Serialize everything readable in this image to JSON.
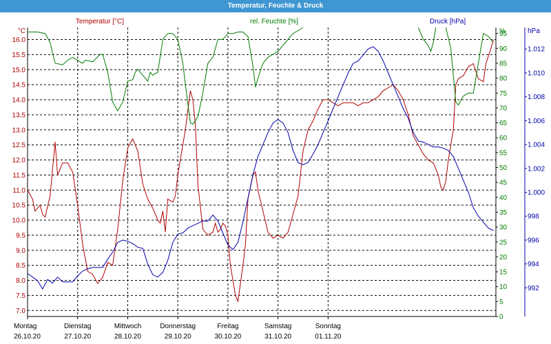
{
  "title": "Temperatur, Feuchte & Druck",
  "colors": {
    "title_bg": "#3f96d2",
    "temperature": "#b00000",
    "humidity": "#007a00",
    "pressure": "#0000aa"
  },
  "chart_data": {
    "type": "line",
    "title": "Temperatur, Feuchte & Druck",
    "legend": [
      "Temperatur [°C]",
      "rel. Feuchte [%]",
      "Druck [hPa]"
    ],
    "grid": true,
    "x_labels": [
      {
        "day": "Montag",
        "date": "26.10.20"
      },
      {
        "day": "Dienstag",
        "date": "27.10.20"
      },
      {
        "day": "Mittwoch",
        "date": "28.10.20"
      },
      {
        "day": "Donnerstag",
        "date": "29.10.20"
      },
      {
        "day": "Freitag",
        "date": "30.10.20"
      },
      {
        "day": "Samstag",
        "date": "31.10.20"
      },
      {
        "day": "Sonntag",
        "date": "01.11.20"
      }
    ],
    "axes": {
      "temperature": {
        "unit": "°C",
        "range": [
          6.8,
          16.4
        ],
        "ticks": [
          "7.0",
          "7.5",
          "8.0",
          "8.5",
          "9.0",
          "9.5",
          "10.0",
          "10.5",
          "11.0",
          "11.5",
          "12.0",
          "12.5",
          "13.0",
          "13.5",
          "14.0",
          "14.5",
          "15.0",
          "15.5",
          "16.0"
        ]
      },
      "humidity": {
        "unit": "%",
        "range": [
          0,
          97
        ],
        "ticks": [
          "0",
          "5",
          "10",
          "15",
          "20",
          "25",
          "30",
          "35",
          "40",
          "45",
          "50",
          "55",
          "60",
          "65",
          "70",
          "75",
          "80",
          "85",
          "90",
          "95"
        ]
      },
      "pressure": {
        "unit": "hPa",
        "range": [
          989.6,
          1013.8
        ],
        "ticks": [
          "992",
          "994",
          "996",
          "998",
          "1.000",
          "1.002",
          "1.004",
          "1.006",
          "1.008",
          "1.010",
          "1.012"
        ]
      }
    },
    "series": [
      {
        "name": "Temperatur [°C]",
        "axis": "temperature",
        "points": [
          [
            26.0,
            11.0
          ],
          [
            26.1,
            10.7
          ],
          [
            26.15,
            10.3
          ],
          [
            26.25,
            10.5
          ],
          [
            26.3,
            10.2
          ],
          [
            26.35,
            10.1
          ],
          [
            26.45,
            10.8
          ],
          [
            26.55,
            12.6
          ],
          [
            26.6,
            11.5
          ],
          [
            26.7,
            11.9
          ],
          [
            26.8,
            11.9
          ],
          [
            26.9,
            11.6
          ],
          [
            27.0,
            10.5
          ],
          [
            27.1,
            9.2
          ],
          [
            27.2,
            8.3
          ],
          [
            27.3,
            8.2
          ],
          [
            27.4,
            7.9
          ],
          [
            27.5,
            8.1
          ],
          [
            27.6,
            8.6
          ],
          [
            27.7,
            8.5
          ],
          [
            27.8,
            9.7
          ],
          [
            27.9,
            11.3
          ],
          [
            28.0,
            12.4
          ],
          [
            28.1,
            12.7
          ],
          [
            28.2,
            12.3
          ],
          [
            28.3,
            11.2
          ],
          [
            28.4,
            10.7
          ],
          [
            28.5,
            10.4
          ],
          [
            28.6,
            10.0
          ],
          [
            28.65,
            9.9
          ],
          [
            28.7,
            10.3
          ],
          [
            28.75,
            9.6
          ],
          [
            28.8,
            10.7
          ],
          [
            28.9,
            10.6
          ],
          [
            28.95,
            10.8
          ],
          [
            29.0,
            11.5
          ],
          [
            29.05,
            12.0
          ],
          [
            29.15,
            13.0
          ],
          [
            29.25,
            14.3
          ],
          [
            29.3,
            14.0
          ],
          [
            29.35,
            13.2
          ],
          [
            29.4,
            11.2
          ],
          [
            29.5,
            9.7
          ],
          [
            29.6,
            9.5
          ],
          [
            29.7,
            9.6
          ],
          [
            29.75,
            9.9
          ],
          [
            29.8,
            9.6
          ],
          [
            29.85,
            9.7
          ],
          [
            29.9,
            9.9
          ],
          [
            29.95,
            9.8
          ],
          [
            30.0,
            9.5
          ],
          [
            30.05,
            8.5
          ],
          [
            30.15,
            7.5
          ],
          [
            30.2,
            7.3
          ],
          [
            30.3,
            8.5
          ],
          [
            30.35,
            9.2
          ],
          [
            30.4,
            10.7
          ],
          [
            30.5,
            11.5
          ],
          [
            30.55,
            11.6
          ],
          [
            30.6,
            11.0
          ],
          [
            30.7,
            10.3
          ],
          [
            30.8,
            9.6
          ],
          [
            30.9,
            9.4
          ],
          [
            31.0,
            9.5
          ],
          [
            31.1,
            9.4
          ],
          [
            31.2,
            9.6
          ],
          [
            31.3,
            10.2
          ],
          [
            31.4,
            10.8
          ],
          [
            31.5,
            12.3
          ],
          [
            31.6,
            13.0
          ],
          [
            31.7,
            13.3
          ],
          [
            31.8,
            13.7
          ],
          [
            31.9,
            14.0
          ],
          [
            32.0,
            14.0
          ],
          [
            32.1,
            13.9
          ],
          [
            32.2,
            13.8
          ],
          [
            32.3,
            13.9
          ],
          [
            32.4,
            13.9
          ],
          [
            32.5,
            13.9
          ],
          [
            32.6,
            13.8
          ],
          [
            32.7,
            13.9
          ],
          [
            32.8,
            13.9
          ],
          [
            32.9,
            14.0
          ],
          [
            33.0,
            14.1
          ],
          [
            33.1,
            14.3
          ],
          [
            33.2,
            14.4
          ],
          [
            33.3,
            14.5
          ],
          [
            33.4,
            14.3
          ],
          [
            33.5,
            14.0
          ],
          [
            33.6,
            13.5
          ],
          [
            33.7,
            12.8
          ],
          [
            33.8,
            12.5
          ],
          [
            33.9,
            12.2
          ],
          [
            34.0,
            12.0
          ],
          [
            34.1,
            11.9
          ],
          [
            34.2,
            11.5
          ],
          [
            34.25,
            11.1
          ],
          [
            34.3,
            11.0
          ],
          [
            34.35,
            11.3
          ],
          [
            34.4,
            12.0
          ],
          [
            34.5,
            13.0
          ],
          [
            34.55,
            14.5
          ],
          [
            34.6,
            14.7
          ],
          [
            34.7,
            14.8
          ],
          [
            34.8,
            15.1
          ],
          [
            34.9,
            15.2
          ],
          [
            35.0,
            14.7
          ],
          [
            35.1,
            14.6
          ],
          [
            35.15,
            15.2
          ],
          [
            35.25,
            15.7
          ],
          [
            35.3,
            16.0
          ]
        ]
      },
      {
        "name": "rel. Feuchte [%]",
        "axis": "humidity",
        "points": [
          [
            26.0,
            95.5
          ],
          [
            26.2,
            95.5
          ],
          [
            26.35,
            95.0
          ],
          [
            26.45,
            92.0
          ],
          [
            26.55,
            85.0
          ],
          [
            26.7,
            84.5
          ],
          [
            26.8,
            86.0
          ],
          [
            26.9,
            87.0
          ],
          [
            27.0,
            86.0
          ],
          [
            27.1,
            85.0
          ],
          [
            27.15,
            86.0
          ],
          [
            27.3,
            85.5
          ],
          [
            27.45,
            88.0
          ],
          [
            27.5,
            88.0
          ],
          [
            27.6,
            82.0
          ],
          [
            27.7,
            72.0
          ],
          [
            27.8,
            69.0
          ],
          [
            27.9,
            72.0
          ],
          [
            28.0,
            79.0
          ],
          [
            28.1,
            79.5
          ],
          [
            28.15,
            82.0
          ],
          [
            28.2,
            83.0
          ],
          [
            28.3,
            81.0
          ],
          [
            28.4,
            79.0
          ],
          [
            28.45,
            82.0
          ],
          [
            28.5,
            81.0
          ],
          [
            28.6,
            82.0
          ],
          [
            28.7,
            93.0
          ],
          [
            28.8,
            95.0
          ],
          [
            28.9,
            95.0
          ],
          [
            29.0,
            93.0
          ],
          [
            29.1,
            85.0
          ],
          [
            29.15,
            78.0
          ],
          [
            29.25,
            65.0
          ],
          [
            29.3,
            64.5
          ],
          [
            29.4,
            67.0
          ],
          [
            29.5,
            75.0
          ],
          [
            29.6,
            85.0
          ],
          [
            29.7,
            87.0
          ],
          [
            29.8,
            93.0
          ],
          [
            29.9,
            93.0
          ],
          [
            30.0,
            95.0
          ],
          [
            30.1,
            95.0
          ],
          [
            30.2,
            95.5
          ],
          [
            30.3,
            95.5
          ],
          [
            30.4,
            94.0
          ],
          [
            30.5,
            84.0
          ],
          [
            30.55,
            77.0
          ],
          [
            30.6,
            80.0
          ],
          [
            30.7,
            85.0
          ],
          [
            30.8,
            87.0
          ],
          [
            30.9,
            88.0
          ],
          [
            31.0,
            89.0
          ],
          [
            31.2,
            93.0
          ],
          [
            31.3,
            95.0
          ],
          [
            31.5,
            97.0
          ]
        ]
      },
      {
        "name": "rel. Feuchte [%]",
        "axis": "humidity",
        "points": [
          [
            33.8,
            97.0
          ],
          [
            33.9,
            93.0
          ],
          [
            34.0,
            91.0
          ],
          [
            34.05,
            89.0
          ],
          [
            34.1,
            92.0
          ],
          [
            34.15,
            97.0
          ]
        ]
      },
      {
        "name": "rel. Feuchte [%]",
        "axis": "humidity",
        "points": [
          [
            34.35,
            97.0
          ],
          [
            34.45,
            90.0
          ],
          [
            34.55,
            72.0
          ],
          [
            34.6,
            71.0
          ],
          [
            34.7,
            74.0
          ],
          [
            34.8,
            75.0
          ],
          [
            34.9,
            75.0
          ],
          [
            35.0,
            85.0
          ],
          [
            35.1,
            95.0
          ],
          [
            35.2,
            94.0
          ],
          [
            35.3,
            92.0
          ]
        ]
      },
      {
        "name": "Druck [hPa]",
        "axis": "pressure",
        "points": [
          [
            26.0,
            993.2
          ],
          [
            26.1,
            992.9
          ],
          [
            26.2,
            992.6
          ],
          [
            26.3,
            991.9
          ],
          [
            26.4,
            992.7
          ],
          [
            26.5,
            992.4
          ],
          [
            26.6,
            992.9
          ],
          [
            26.7,
            992.5
          ],
          [
            26.8,
            992.5
          ],
          [
            26.9,
            992.5
          ],
          [
            27.0,
            993.0
          ],
          [
            27.1,
            993.4
          ],
          [
            27.2,
            993.6
          ],
          [
            27.3,
            993.7
          ],
          [
            27.4,
            993.7
          ],
          [
            27.5,
            993.7
          ],
          [
            27.6,
            994.4
          ],
          [
            27.7,
            995.0
          ],
          [
            27.8,
            995.8
          ],
          [
            27.9,
            996.0
          ],
          [
            28.0,
            995.9
          ],
          [
            28.1,
            995.7
          ],
          [
            28.2,
            995.4
          ],
          [
            28.3,
            995.3
          ],
          [
            28.4,
            994.0
          ],
          [
            28.5,
            993.1
          ],
          [
            28.6,
            992.9
          ],
          [
            28.7,
            993.3
          ],
          [
            28.8,
            994.3
          ],
          [
            28.9,
            995.8
          ],
          [
            29.0,
            996.5
          ],
          [
            29.1,
            996.6
          ],
          [
            29.2,
            997.0
          ],
          [
            29.3,
            997.2
          ],
          [
            29.4,
            997.4
          ],
          [
            29.5,
            997.6
          ],
          [
            29.6,
            997.6
          ],
          [
            29.7,
            998.1
          ],
          [
            29.8,
            997.6
          ],
          [
            29.9,
            996.6
          ],
          [
            30.0,
            995.6
          ],
          [
            30.1,
            995.2
          ],
          [
            30.2,
            995.8
          ],
          [
            30.3,
            997.5
          ],
          [
            30.4,
            999.5
          ],
          [
            30.5,
            1001.5
          ],
          [
            30.6,
            1003.0
          ],
          [
            30.7,
            1004.0
          ],
          [
            30.8,
            1005.0
          ],
          [
            30.9,
            1005.8
          ],
          [
            31.0,
            1006.1
          ],
          [
            31.1,
            1005.8
          ],
          [
            31.2,
            1005.0
          ],
          [
            31.3,
            1003.5
          ],
          [
            31.4,
            1002.5
          ],
          [
            31.5,
            1002.3
          ],
          [
            31.6,
            1002.5
          ],
          [
            31.7,
            1003.2
          ],
          [
            31.8,
            1004.0
          ],
          [
            31.9,
            1005.0
          ],
          [
            32.0,
            1006.0
          ],
          [
            32.1,
            1007.0
          ],
          [
            32.2,
            1008.0
          ],
          [
            32.3,
            1009.0
          ],
          [
            32.4,
            1010.0
          ],
          [
            32.5,
            1010.8
          ],
          [
            32.6,
            1011.0
          ],
          [
            32.7,
            1011.5
          ],
          [
            32.8,
            1012.0
          ],
          [
            32.9,
            1012.2
          ],
          [
            33.0,
            1011.8
          ],
          [
            33.1,
            1011.0
          ],
          [
            33.2,
            1010.0
          ],
          [
            33.3,
            1009.0
          ],
          [
            33.4,
            1008.0
          ],
          [
            33.5,
            1007.0
          ],
          [
            33.6,
            1006.2
          ],
          [
            33.7,
            1005.0
          ],
          [
            33.8,
            1004.3
          ],
          [
            33.9,
            1004.2
          ],
          [
            34.0,
            1004.0
          ],
          [
            34.1,
            1003.8
          ],
          [
            34.2,
            1003.8
          ],
          [
            34.3,
            1003.7
          ],
          [
            34.4,
            1003.5
          ],
          [
            34.5,
            1003.0
          ],
          [
            34.6,
            1002.0
          ],
          [
            34.7,
            1001.0
          ],
          [
            34.8,
            1000.0
          ],
          [
            34.9,
            998.7
          ],
          [
            35.0,
            998.0
          ],
          [
            35.1,
            997.5
          ],
          [
            35.2,
            997.0
          ],
          [
            35.3,
            996.8
          ]
        ]
      }
    ]
  }
}
